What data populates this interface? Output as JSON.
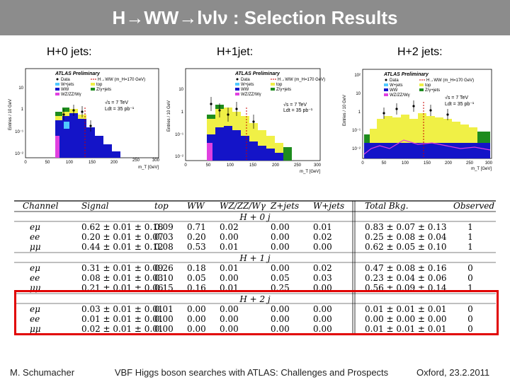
{
  "title": "H→WW→lνlν : Selection Results",
  "jet_labels": [
    "H+0 jets:",
    "H+1jet:",
    "H+2 jets:"
  ],
  "colors": {
    "title_bar": "#8c8c8c",
    "highlight": "#e10000",
    "ww": "#1414c8",
    "top": "#f0f046",
    "zjets": "#1e8c1e",
    "wjets": "#50c8ff",
    "wz": "#e040e0",
    "data": "#000000",
    "signal": "#c80000"
  },
  "plots": [
    {
      "atlas": "ATLAS Preliminary",
      "ylabel": "Entries / 10 GeV",
      "xlabel": "m_T [GeV]",
      "legend": [
        "Data",
        "H→WW (m_H=170 GeV)",
        "W+jets",
        "top",
        "WW",
        "Z/γ+jets",
        "WZ/ZZ/Wγ"
      ],
      "energy": "√s = 7 TeV",
      "lumi": "Ldt = 35 pb⁻¹",
      "xticks": [
        "0",
        "50",
        "100",
        "150",
        "200",
        "250",
        "300"
      ],
      "yticks": [
        "10",
        "1",
        "10⁻¹",
        "10⁻²"
      ]
    },
    {
      "atlas": "ATLAS Preliminary",
      "ylabel": "Entries / 10 GeV",
      "xlabel": "m_T [GeV]",
      "legend": [
        "Data",
        "H→WW (m_H=170 GeV)",
        "W+jets",
        "top",
        "WW",
        "Z/γ+jets",
        "WZ/ZZ/Wγ"
      ],
      "energy": "√s = 7 TeV",
      "lumi": "Ldt = 35 pb⁻¹",
      "xticks": [
        "0",
        "50",
        "100",
        "150",
        "200",
        "250",
        "300"
      ],
      "yticks": [
        "10",
        "1",
        "10⁻¹",
        "10⁻²"
      ]
    },
    {
      "atlas": "ATLAS Preliminary",
      "ylabel": "Entries / 10 GeV",
      "xlabel": "m_T [GeV]",
      "legend": [
        "Data",
        "H→WW (m_H=170 GeV)",
        "W+jets",
        "WW",
        "WZ/ZZ/Wγ",
        "top",
        "Z/γ+jets"
      ],
      "energy": "√s = 7 TeV",
      "lumi": "Ldt = 35 pb⁻¹",
      "xticks": [
        "0",
        "50",
        "100",
        "150",
        "200",
        "250",
        "300"
      ],
      "yticks": [
        "10²",
        "10",
        "1",
        "10⁻¹",
        "10⁻²"
      ]
    }
  ],
  "table": {
    "headers": [
      "Channel",
      "Signal",
      "top",
      "WW",
      "WZ/ZZ/Wγ",
      "Z+jets",
      "W+jets",
      "Total Bkg.",
      "Observed"
    ],
    "sections": [
      {
        "name": "H + 0 j",
        "rows": [
          [
            "eμ",
            "0.62 ± 0.01 ± 0.18",
            "0.09",
            "0.71",
            "0.02",
            "0.00",
            "0.01",
            "0.83 ± 0.07 ± 0.13",
            "1"
          ],
          [
            "ee",
            "0.20 ± 0.01 ± 0.07",
            "0.03",
            "0.20",
            "0.00",
            "0.00",
            "0.02",
            "0.25 ± 0.08 ± 0.04",
            "1"
          ],
          [
            "μμ",
            "0.44 ± 0.01 ± 0.12",
            "0.08",
            "0.53",
            "0.01",
            "0.00",
            "0.00",
            "0.62 ± 0.05 ± 0.10",
            "1"
          ]
        ]
      },
      {
        "name": "H + 1 j",
        "rows": [
          [
            "eμ",
            "0.31 ± 0.01 ± 0.09",
            "0.26",
            "0.18",
            "0.01",
            "0.00",
            "0.02",
            "0.47 ± 0.08 ± 0.16",
            "0"
          ],
          [
            "ee",
            "0.08 ± 0.01 ± 0.03",
            "0.10",
            "0.05",
            "0.00",
            "0.05",
            "0.03",
            "0.23 ± 0.04 ± 0.06",
            "0"
          ],
          [
            "μμ",
            "0.21 ± 0.01 ± 0.06",
            "0.15",
            "0.16",
            "0.01",
            "0.25",
            "0.00",
            "0.56 ± 0.09 ± 0.14",
            "1"
          ]
        ]
      },
      {
        "name": "H + 2 j",
        "rows": [
          [
            "eμ",
            "0.03 ± 0.01 ± 0.01",
            "0.01",
            "0.00",
            "0.00",
            "0.00",
            "0.00",
            "0.01 ± 0.01 ± 0.01",
            "0"
          ],
          [
            "ee",
            "0.01 ± 0.01 ± 0.01",
            "0.00",
            "0.00",
            "0.00",
            "0.00",
            "0.00",
            "0.00 ± 0.00 ± 0.00",
            "0"
          ],
          [
            "μμ",
            "0.02 ± 0.01 ± 0.01",
            "0.00",
            "0.00",
            "0.00",
            "0.00",
            "0.00",
            "0.01 ± 0.01 ± 0.01",
            "0"
          ]
        ]
      }
    ]
  },
  "footer": {
    "left": "M. Schumacher",
    "center": "VBF Higgs boson searches with ATLAS: Challenges and Prospects",
    "right": "Oxford, 23.2.2011"
  }
}
